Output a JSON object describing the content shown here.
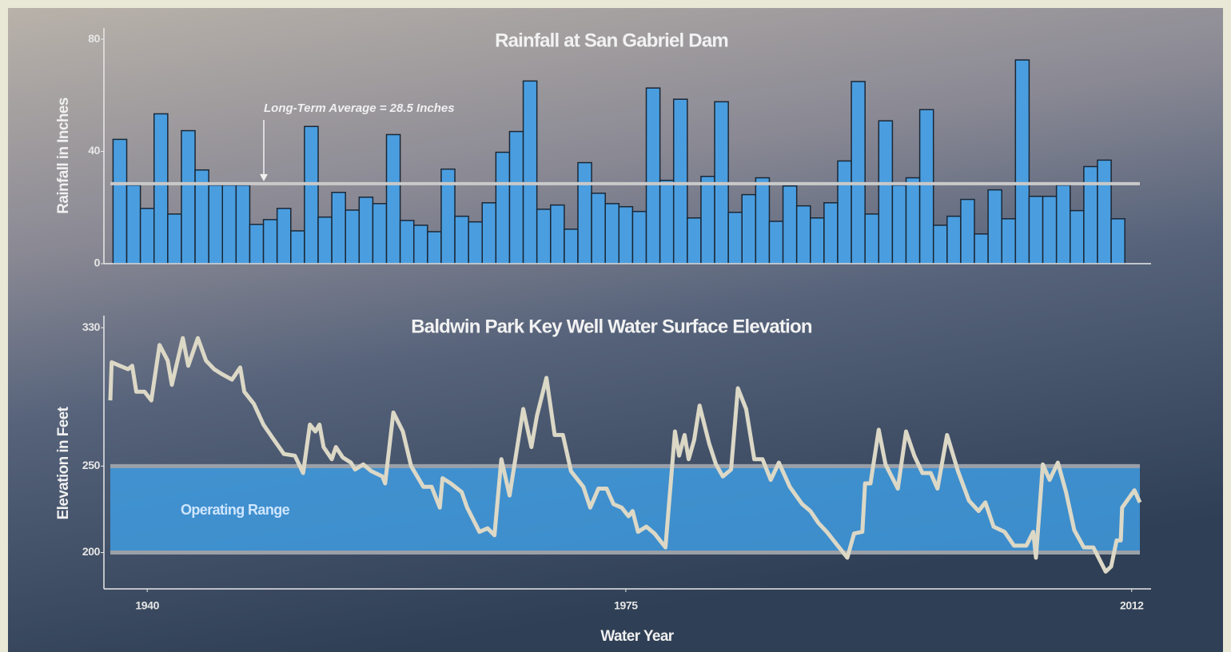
{
  "chart_data": [
    {
      "type": "bar",
      "title": "Rainfall at San Gabriel Dam",
      "y_label": "Rainfall in Inches",
      "color": "#4a9ee0",
      "x": [
        1938,
        1939,
        1940,
        1941,
        1942,
        1943,
        1944,
        1945,
        1946,
        1947,
        1948,
        1949,
        1950,
        1951,
        1952,
        1953,
        1954,
        1955,
        1956,
        1957,
        1958,
        1959,
        1960,
        1961,
        1962,
        1963,
        1964,
        1965,
        1966,
        1967,
        1968,
        1969,
        1970,
        1971,
        1972,
        1973,
        1974,
        1975,
        1976,
        1977,
        1978,
        1979,
        1980,
        1981,
        1982,
        1983,
        1984,
        1985,
        1986,
        1987,
        1988,
        1989,
        1990,
        1991,
        1992,
        1993,
        1994,
        1995,
        1996,
        1997,
        1998,
        1999,
        2000,
        2001,
        2002,
        2003,
        2004,
        2005,
        2006,
        2007,
        2008,
        2009,
        2010,
        2011
      ],
      "values": [
        44.3,
        28,
        19.7,
        53.4,
        17.7,
        47.4,
        33.4,
        28,
        28,
        28,
        14,
        15.7,
        19.7,
        11.7,
        48.9,
        16.6,
        25.4,
        19.1,
        23.7,
        21.4,
        46,
        15.4,
        13.7,
        11.4,
        33.7,
        16.9,
        14.9,
        21.7,
        39.7,
        47.1,
        65.1,
        19.4,
        20.9,
        12.3,
        36,
        25.1,
        21.4,
        20.3,
        18.6,
        62.6,
        29.7,
        58.6,
        16.3,
        31.1,
        57.7,
        18.3,
        24.6,
        30.6,
        15.1,
        27.7,
        20.6,
        16.3,
        21.7,
        36.6,
        64.9,
        17.7,
        50.9,
        28,
        30.6,
        54.9,
        13.7,
        16.9,
        22.9,
        10.6,
        26.3,
        16,
        72.6,
        24,
        24,
        28,
        18.9,
        34.6,
        36.9,
        16
      ],
      "xlim": [
        1937.3,
        2012.6
      ],
      "ylim": [
        0,
        84
      ],
      "yticks": [
        0,
        40,
        80
      ],
      "reference_line": {
        "value": 28.5,
        "label": "Long-Term Average = 28.5 Inches",
        "color": "#c9c9c9"
      }
    },
    {
      "type": "line",
      "title": "Baldwin Park Key Well Water Surface Elevation",
      "y_label": "Elevation in Feet",
      "x_label": "Water Year",
      "color": "#dcd8c6",
      "x": [
        1937.3,
        1937.4,
        1938.0,
        1938.6,
        1938.9,
        1939.2,
        1939.8,
        1940.3,
        1940.9,
        1941.5,
        1941.8,
        1942.6,
        1943.0,
        1943.7,
        1944.3,
        1944.9,
        1945.5,
        1946.2,
        1946.8,
        1947.1,
        1947.8,
        1948.5,
        1949.2,
        1950.0,
        1950.8,
        1951.4,
        1951.9,
        1952.3,
        1952.6,
        1952.9,
        1953.5,
        1953.8,
        1954.3,
        1954.9,
        1955.2,
        1955.8,
        1956.4,
        1957.2,
        1957.4,
        1958.0,
        1958.7,
        1959.3,
        1960.2,
        1960.8,
        1961.4,
        1961.6,
        1962.2,
        1963.0,
        1963.4,
        1964.3,
        1964.9,
        1965.4,
        1965.9,
        1966.5,
        1967.5,
        1968.1,
        1968.5,
        1969.2,
        1969.8,
        1970.4,
        1971.0,
        1971.9,
        1972.4,
        1973.0,
        1973.6,
        1974.1,
        1974.7,
        1975.2,
        1975.5,
        1975.9,
        1976.5,
        1977.1,
        1977.9,
        1978.6,
        1978.9,
        1979.3,
        1979.6,
        1980.0,
        1980.4,
        1981.1,
        1981.6,
        1982.1,
        1982.7,
        1983.2,
        1983.8,
        1984.4,
        1985.0,
        1985.6,
        1986.2,
        1987.0,
        1987.9,
        1988.5,
        1989.1,
        1989.7,
        1990.5,
        1991.2,
        1991.7,
        1992.3,
        1992.5,
        1992.9,
        1993.5,
        1994.0,
        1994.9,
        1995.5,
        1996.1,
        1996.7,
        1997.3,
        1997.8,
        1998.5,
        1999.3,
        2000.1,
        2000.8,
        2001.3,
        2001.9,
        2002.7,
        2003.4,
        2004.3,
        2004.8,
        2005.0,
        2005.5,
        2006.0,
        2006.6,
        2007.2,
        2007.8,
        2008.5,
        2009.2,
        2010.1,
        2010.5,
        2010.9,
        2011.2,
        2011.3,
        2012.2,
        2012.6
      ],
      "values": [
        288,
        310,
        308,
        306,
        308,
        293,
        293,
        288,
        320,
        311,
        297,
        324,
        308,
        324,
        311,
        306,
        303,
        300,
        307,
        293,
        286,
        274,
        266,
        257,
        256,
        246,
        274,
        270,
        274,
        261,
        254,
        261,
        255,
        252,
        248,
        251,
        247,
        244,
        240,
        281,
        270,
        250,
        238,
        238,
        226,
        243,
        240,
        235,
        226,
        212,
        214,
        210,
        254,
        233,
        283,
        261,
        279,
        301,
        268,
        268,
        247,
        238,
        226,
        237,
        237,
        228,
        226,
        221,
        224,
        212,
        215,
        211,
        203,
        270,
        256,
        268,
        254,
        265,
        285,
        263,
        251,
        244,
        248,
        295,
        283,
        254,
        254,
        242,
        252,
        238,
        228,
        224,
        217,
        212,
        204,
        197,
        211,
        212,
        240,
        240,
        271,
        251,
        237,
        270,
        256,
        246,
        246,
        237,
        268,
        247,
        230,
        224,
        229,
        215,
        212,
        204,
        204,
        212,
        197,
        251,
        242,
        252,
        235,
        213,
        203,
        203,
        189,
        192,
        207,
        207,
        226,
        236,
        229
      ],
      "xlim": [
        1937.3,
        2012.6
      ],
      "ylim": [
        179,
        337
      ],
      "yticks": [
        200,
        250,
        330
      ],
      "xticks": [
        1940,
        1975,
        2012
      ],
      "band": {
        "low": 200,
        "high": 250,
        "label": "Operating Range",
        "color": "#3f9be0"
      }
    }
  ]
}
